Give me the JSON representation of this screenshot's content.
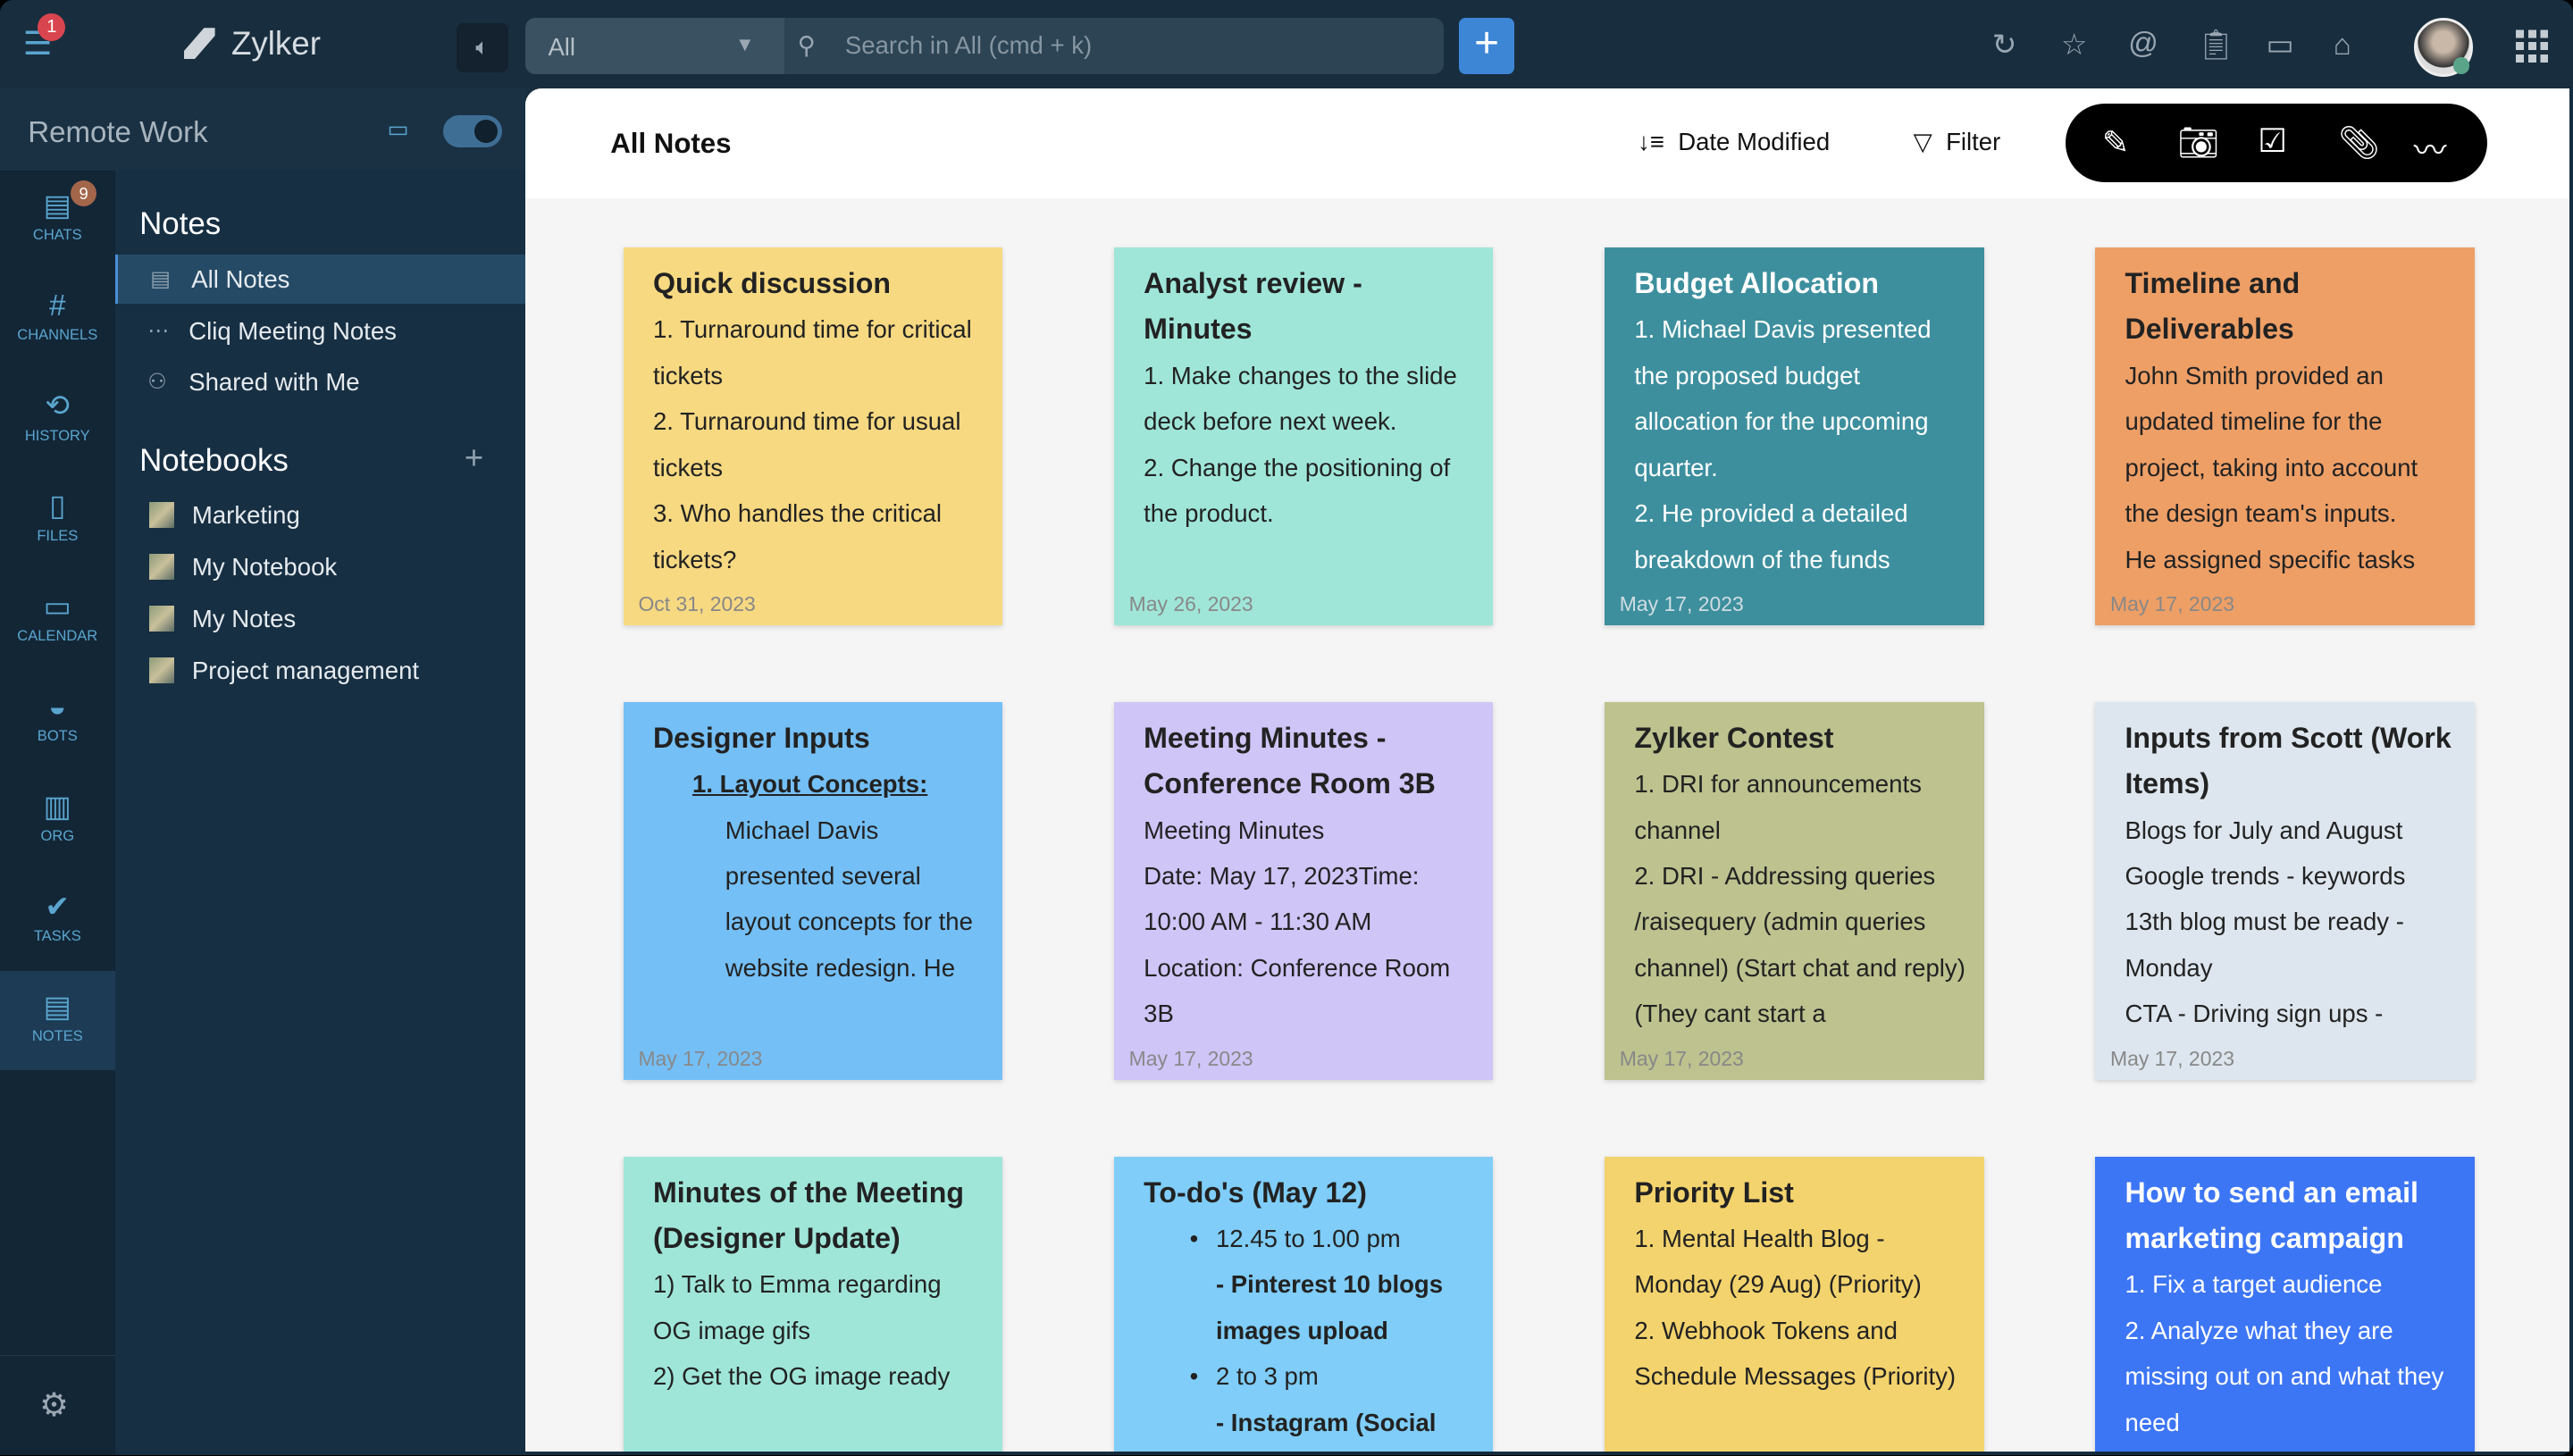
{
  "topbar": {
    "menu_badge": "1",
    "brand": "Zylker",
    "scope": "All",
    "search_placeholder": "Search in All (cmd + k)",
    "add": "+"
  },
  "icons": [
    "menu-icon",
    "speaker-icon",
    "chevron-down-icon",
    "search-icon",
    "history-icon",
    "star-icon",
    "mention-icon",
    "clipboard-clock-icon",
    "calendar-icon",
    "store-icon",
    "apps-grid-icon"
  ],
  "workspace": {
    "name": "Remote Work"
  },
  "rail": [
    {
      "label": "CHATS",
      "icon": "chat-icon",
      "badge": "9"
    },
    {
      "label": "CHANNELS",
      "icon": "hash-icon"
    },
    {
      "label": "HISTORY",
      "icon": "history-icon"
    },
    {
      "label": "FILES",
      "icon": "file-icon"
    },
    {
      "label": "CALENDAR",
      "icon": "calendar-icon"
    },
    {
      "label": "BOTS",
      "icon": "bot-icon"
    },
    {
      "label": "ORG",
      "icon": "org-icon"
    },
    {
      "label": "TASKS",
      "icon": "tasks-icon"
    },
    {
      "label": "NOTES",
      "icon": "notes-icon",
      "active": true
    }
  ],
  "sidebar": {
    "notes_heading": "Notes",
    "notes": [
      {
        "label": "All Notes",
        "active": true
      },
      {
        "label": "Cliq Meeting Notes"
      },
      {
        "label": "Shared with Me"
      }
    ],
    "notebooks_heading": "Notebooks",
    "notebooks": [
      {
        "label": "Marketing"
      },
      {
        "label": "My Notebook"
      },
      {
        "label": "My Notes"
      },
      {
        "label": "Project management"
      }
    ]
  },
  "header": {
    "title": "All Notes",
    "sort": "Date Modified",
    "filter": "Filter",
    "tools": [
      "edit-note-icon",
      "camera-icon",
      "checkbox-icon",
      "attachment-icon",
      "sketch-icon"
    ]
  },
  "notes": [
    {
      "title": "Quick discussion",
      "color": "#f7d982",
      "date": "Oct 31, 2023",
      "lines": [
        {
          "t": "1. Turnaround time for critical tickets"
        },
        {
          "t": "2. Turnaround time for usual tickets"
        },
        {
          "t": "3. Who handles the critical tickets?"
        }
      ]
    },
    {
      "title": "Analyst review - Minutes",
      "color": "#9fe6d9",
      "date": "May 26, 2023",
      "lines": [
        {
          "t": "1. Make changes to the slide deck before next week."
        },
        {
          "t": "2. Change the positioning of the product."
        }
      ]
    },
    {
      "title": "Budget Allocation",
      "color": "#3d8f9e",
      "dark": true,
      "date": "May 17, 2023",
      "lines": [
        {
          "t": "1. Michael Davis presented the proposed budget allocation for the upcoming quarter."
        },
        {
          "t": "2. He provided a detailed breakdown of the funds"
        }
      ]
    },
    {
      "title": "Timeline and Deliverables",
      "color": "#ee9f66",
      "date": "May 17, 2023",
      "lines": [
        {
          "t": "John Smith provided an updated timeline for the project, taking into account the design team's inputs."
        },
        {
          "t": "He assigned specific tasks"
        }
      ]
    },
    {
      "title": "Designer Inputs",
      "color": "#74bff6",
      "date": "May 17, 2023",
      "lines": [
        {
          "t": "1. Layout Concepts:",
          "s": "head"
        },
        {
          "t": "Michael Davis presented several layout concepts for the website redesign. He",
          "s": "ind"
        }
      ]
    },
    {
      "title": "Meeting Minutes - Conference Room 3B",
      "color": "#cfc5f7",
      "date": "May 17, 2023",
      "lines": [
        {
          "t": "Meeting Minutes"
        },
        {
          "t": "Date: May 17, 2023Time: 10:00 AM - 11:30 AM"
        },
        {
          "t": "Location: Conference Room 3B"
        }
      ]
    },
    {
      "title": "Zylker Contest",
      "color": "#bdc28f",
      "date": "May 17, 2023",
      "lines": [
        {
          "t": "1. DRI for announcements channel"
        },
        {
          "t": "2. DRI - Addressing queries /raisequery (admin queries channel) (Start chat and reply) (They cant start a"
        }
      ]
    },
    {
      "title": "Inputs from Scott (Work Items)",
      "color": "#dde6ee",
      "date": "May 17, 2023",
      "lines": [
        {
          "t": "Blogs for July and August"
        },
        {
          "t": "Google trends - keywords"
        },
        {
          "t": "13th blog must be ready - Monday"
        },
        {
          "t": "CTA - Driving sign ups -"
        }
      ]
    },
    {
      "title": "Minutes of the Meeting (Designer Update)",
      "color": "#9fe6d9",
      "date": "",
      "lines": [
        {
          "t": "1) Talk to Emma regarding OG image gifs"
        },
        {
          "t": "2) Get the OG image ready"
        }
      ]
    },
    {
      "title": "To-do's (May 12)",
      "color": "#7fcdf8",
      "date": "",
      "lines": [
        {
          "t": "12.45 to 1.00 pm",
          "s": "bul"
        },
        {
          "t": "- Pinterest 10 blogs images upload",
          "s": "sub"
        },
        {
          "t": "2 to 3 pm",
          "s": "bul"
        },
        {
          "t": "- Instagram (Social",
          "s": "sub"
        }
      ]
    },
    {
      "title": "Priority List",
      "color": "#f3d36d",
      "date": "",
      "lines": [
        {
          "t": "1. Mental Health Blog - Monday (29 Aug) (Priority)"
        },
        {
          "t": "2. Webhook Tokens and Schedule Messages (Priority)"
        }
      ]
    },
    {
      "title": "How to send an email marketing campaign",
      "color": "#3d76f5",
      "dark": true,
      "date": "",
      "lines": [
        {
          "t": "1. Fix a target audience"
        },
        {
          "t": "2. Analyze what they are missing out on and what they need"
        }
      ]
    }
  ]
}
